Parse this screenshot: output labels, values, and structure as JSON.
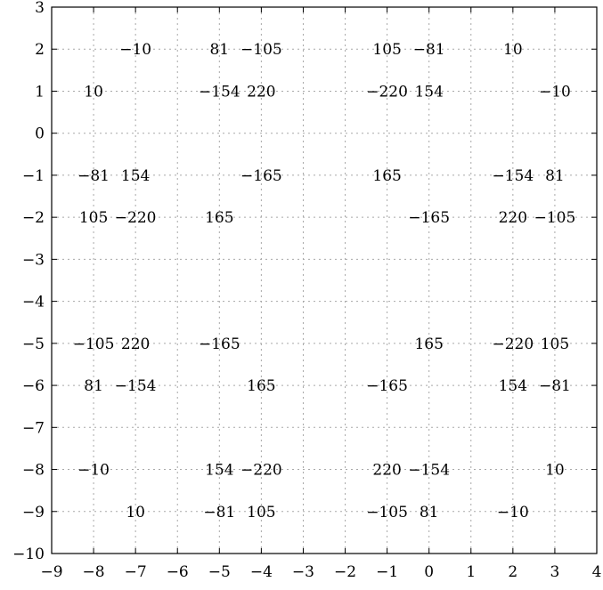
{
  "chart_data": {
    "type": "scatter",
    "title": "",
    "xlabel": "",
    "ylabel": "",
    "xlim": [
      -9,
      4
    ],
    "ylim": [
      -10,
      3
    ],
    "grid": true,
    "xticks": [
      -9,
      -8,
      -7,
      -6,
      -5,
      -4,
      -3,
      -2,
      -1,
      0,
      1,
      2,
      3,
      4
    ],
    "yticks": [
      3,
      2,
      1,
      0,
      -1,
      -2,
      -3,
      -4,
      -5,
      -6,
      -7,
      -8,
      -9,
      -10
    ],
    "xtick_labels": [
      "−9",
      "−8",
      "−7",
      "−6",
      "−5",
      "−4",
      "−3",
      "−2",
      "−1",
      "0",
      "1",
      "2",
      "3",
      "4"
    ],
    "ytick_labels": [
      "3",
      "2",
      "1",
      "0",
      "−1",
      "−2",
      "−3",
      "−4",
      "−5",
      "−6",
      "−7",
      "−8",
      "−9",
      "−10"
    ],
    "points": [
      {
        "x": -7,
        "y": 2,
        "label": "−10"
      },
      {
        "x": -5,
        "y": 2,
        "label": "81"
      },
      {
        "x": -4,
        "y": 2,
        "label": "−105"
      },
      {
        "x": -1,
        "y": 2,
        "label": "105"
      },
      {
        "x": 0,
        "y": 2,
        "label": "−81"
      },
      {
        "x": 2,
        "y": 2,
        "label": "10"
      },
      {
        "x": -8,
        "y": 1,
        "label": "10"
      },
      {
        "x": -5,
        "y": 1,
        "label": "−154"
      },
      {
        "x": -4,
        "y": 1,
        "label": "220"
      },
      {
        "x": -1,
        "y": 1,
        "label": "−220"
      },
      {
        "x": 0,
        "y": 1,
        "label": "154"
      },
      {
        "x": 3,
        "y": 1,
        "label": "−10"
      },
      {
        "x": -8,
        "y": -1,
        "label": "−81"
      },
      {
        "x": -7,
        "y": -1,
        "label": "154"
      },
      {
        "x": -4,
        "y": -1,
        "label": "−165"
      },
      {
        "x": -1,
        "y": -1,
        "label": "165"
      },
      {
        "x": 2,
        "y": -1,
        "label": "−154"
      },
      {
        "x": 3,
        "y": -1,
        "label": "81"
      },
      {
        "x": -8,
        "y": -2,
        "label": "105"
      },
      {
        "x": -7,
        "y": -2,
        "label": "−220"
      },
      {
        "x": -5,
        "y": -2,
        "label": "165"
      },
      {
        "x": 0,
        "y": -2,
        "label": "−165"
      },
      {
        "x": 2,
        "y": -2,
        "label": "220"
      },
      {
        "x": 3,
        "y": -2,
        "label": "−105"
      },
      {
        "x": -8,
        "y": -5,
        "label": "−105"
      },
      {
        "x": -7,
        "y": -5,
        "label": "220"
      },
      {
        "x": -5,
        "y": -5,
        "label": "−165"
      },
      {
        "x": 0,
        "y": -5,
        "label": "165"
      },
      {
        "x": 2,
        "y": -5,
        "label": "−220"
      },
      {
        "x": 3,
        "y": -5,
        "label": "105"
      },
      {
        "x": -8,
        "y": -6,
        "label": "81"
      },
      {
        "x": -7,
        "y": -6,
        "label": "−154"
      },
      {
        "x": -4,
        "y": -6,
        "label": "165"
      },
      {
        "x": -1,
        "y": -6,
        "label": "−165"
      },
      {
        "x": 2,
        "y": -6,
        "label": "154"
      },
      {
        "x": 3,
        "y": -6,
        "label": "−81"
      },
      {
        "x": -8,
        "y": -8,
        "label": "−10"
      },
      {
        "x": -5,
        "y": -8,
        "label": "154"
      },
      {
        "x": -4,
        "y": -8,
        "label": "−220"
      },
      {
        "x": -1,
        "y": -8,
        "label": "220"
      },
      {
        "x": 0,
        "y": -8,
        "label": "−154"
      },
      {
        "x": 3,
        "y": -8,
        "label": "10"
      },
      {
        "x": -7,
        "y": -9,
        "label": "10"
      },
      {
        "x": -5,
        "y": -9,
        "label": "−81"
      },
      {
        "x": -4,
        "y": -9,
        "label": "105"
      },
      {
        "x": -1,
        "y": -9,
        "label": "−105"
      },
      {
        "x": 0,
        "y": -9,
        "label": "81"
      },
      {
        "x": 2,
        "y": -9,
        "label": "−10"
      }
    ]
  }
}
